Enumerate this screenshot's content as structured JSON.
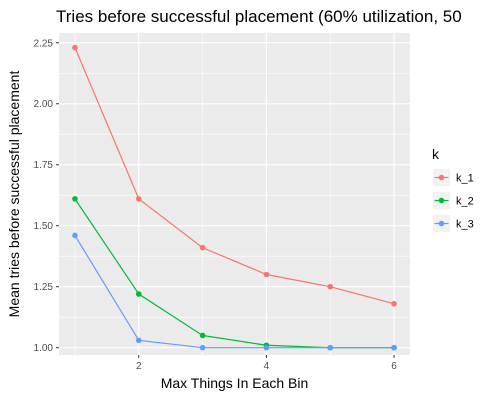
{
  "chart_data": {
    "type": "line",
    "title": "Tries before successful placement (60% utilization, 50",
    "xlabel": "Max Things In Each Bin",
    "ylabel": "Mean tries before successful placement",
    "x": [
      1,
      2,
      3,
      4,
      5,
      6
    ],
    "xlim": [
      0.75,
      6.25
    ],
    "ylim": [
      0.97,
      2.29
    ],
    "x_ticks": [
      2,
      4,
      6
    ],
    "x_tick_labels": [
      "2",
      "4",
      "6"
    ],
    "y_ticks": [
      1.0,
      1.25,
      1.5,
      1.75,
      2.0,
      2.25
    ],
    "y_tick_labels": [
      "1.00",
      "1.25",
      "1.50",
      "1.75",
      "2.00",
      "2.25"
    ],
    "grid": true,
    "legend_position": "right",
    "legend_title": "k",
    "series": [
      {
        "name": "k_1",
        "color": "#F8766D",
        "values": [
          2.23,
          1.61,
          1.41,
          1.3,
          1.25,
          1.18
        ]
      },
      {
        "name": "k_2",
        "color": "#00BA38",
        "values": [
          1.61,
          1.22,
          1.05,
          1.01,
          1.0,
          1.0
        ]
      },
      {
        "name": "k_3",
        "color": "#619CFF",
        "values": [
          1.46,
          1.03,
          1.0,
          1.0,
          1.0,
          1.0
        ]
      }
    ]
  }
}
